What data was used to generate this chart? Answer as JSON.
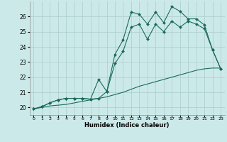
{
  "xlabel": "Humidex (Indice chaleur)",
  "bg_color": "#cce9e9",
  "grid_color": "#b0d0d0",
  "line_color": "#1a6b5a",
  "xlim": [
    -0.5,
    23.5
  ],
  "ylim": [
    19.5,
    27.0
  ],
  "yticks": [
    20,
    21,
    22,
    23,
    24,
    25,
    26
  ],
  "xtick_labels": [
    "0",
    "1",
    "2",
    "3",
    "4",
    "5",
    "6",
    "7",
    "8",
    "9",
    "10",
    "11",
    "12",
    "13",
    "14",
    "15",
    "16",
    "17",
    "18",
    "19",
    "20",
    "21",
    "22",
    "23"
  ],
  "line1_x": [
    0,
    1,
    2,
    3,
    4,
    5,
    6,
    7,
    8,
    9,
    10,
    11,
    12,
    13,
    14,
    15,
    16,
    17,
    18,
    19,
    20,
    21,
    22,
    23
  ],
  "line1_y": [
    19.9,
    20.05,
    20.3,
    20.5,
    20.6,
    20.6,
    20.6,
    20.55,
    21.85,
    21.05,
    23.5,
    24.45,
    26.3,
    26.15,
    25.5,
    26.3,
    25.6,
    26.65,
    26.35,
    25.85,
    25.85,
    25.45,
    23.8,
    22.55
  ],
  "line2_x": [
    0,
    1,
    2,
    3,
    4,
    5,
    6,
    7,
    8,
    9,
    10,
    11,
    12,
    13,
    14,
    15,
    16,
    17,
    18,
    19,
    20,
    21,
    22,
    23
  ],
  "line2_y": [
    19.9,
    20.05,
    20.3,
    20.5,
    20.6,
    20.6,
    20.6,
    20.55,
    20.6,
    21.05,
    22.9,
    23.7,
    25.3,
    25.5,
    24.5,
    25.5,
    25.0,
    25.7,
    25.3,
    25.7,
    25.5,
    25.2,
    23.8,
    22.55
  ],
  "line3_x": [
    0,
    1,
    2,
    3,
    4,
    5,
    6,
    7,
    8,
    9,
    10,
    11,
    12,
    13,
    14,
    15,
    16,
    17,
    18,
    19,
    20,
    21,
    22,
    23
  ],
  "line3_y": [
    19.9,
    20.0,
    20.1,
    20.15,
    20.2,
    20.3,
    20.4,
    20.5,
    20.6,
    20.7,
    20.85,
    21.0,
    21.2,
    21.4,
    21.55,
    21.7,
    21.85,
    22.0,
    22.15,
    22.3,
    22.45,
    22.55,
    22.6,
    22.6
  ]
}
